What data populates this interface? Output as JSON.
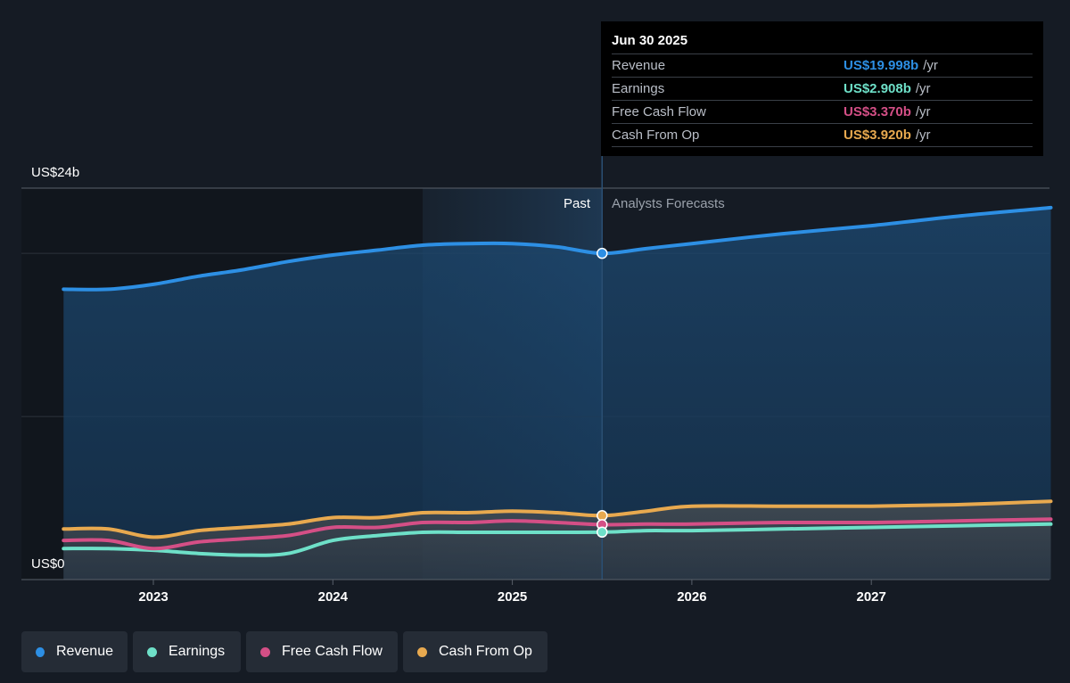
{
  "colors": {
    "revenue": "#2d8fe4",
    "earnings": "#6ee0c8",
    "free_cash_flow": "#d44f86",
    "cash_from_op": "#e8a94f",
    "background": "#151b24"
  },
  "labels": {
    "past": "Past",
    "forecast": "Analysts Forecasts",
    "y_top": "US$24b",
    "y_bottom": "US$0"
  },
  "tooltip": {
    "date": "Jun 30 2025",
    "rows": [
      {
        "name": "Revenue",
        "value": "US$19.998b",
        "unit": "/yr",
        "color": "#2d8fe4"
      },
      {
        "name": "Earnings",
        "value": "US$2.908b",
        "unit": "/yr",
        "color": "#6ee0c8"
      },
      {
        "name": "Free Cash Flow",
        "value": "US$3.370b",
        "unit": "/yr",
        "color": "#d44f86"
      },
      {
        "name": "Cash From Op",
        "value": "US$3.920b",
        "unit": "/yr",
        "color": "#e8a94f"
      }
    ]
  },
  "legend": [
    {
      "label": "Revenue",
      "icon": "circle-icon",
      "color": "#2d8fe4"
    },
    {
      "label": "Earnings",
      "icon": "circle-icon",
      "color": "#6ee0c8"
    },
    {
      "label": "Free Cash Flow",
      "icon": "circle-icon",
      "color": "#d44f86"
    },
    {
      "label": "Cash From Op",
      "icon": "circle-icon",
      "color": "#e8a94f"
    }
  ],
  "chart_data": {
    "type": "area",
    "y_unit": "US$ billions",
    "ylim": [
      0,
      24
    ],
    "xlim": [
      2022.5,
      2028.0
    ],
    "x_ticks": [
      2023,
      2024,
      2025,
      2026,
      2027
    ],
    "x_tick_labels": [
      "2023",
      "2024",
      "2025",
      "2026",
      "2027"
    ],
    "highlight_range": [
      2024.5,
      2025.5
    ],
    "divider_x": 2025.5,
    "grid": true,
    "series": [
      {
        "name": "Revenue",
        "color": "#2d8fe4",
        "filled": true,
        "points": [
          [
            2022.5,
            17.8
          ],
          [
            2022.75,
            17.8
          ],
          [
            2023.0,
            18.1
          ],
          [
            2023.25,
            18.6
          ],
          [
            2023.5,
            19.0
          ],
          [
            2023.75,
            19.5
          ],
          [
            2024.0,
            19.9
          ],
          [
            2024.25,
            20.2
          ],
          [
            2024.5,
            20.5
          ],
          [
            2024.75,
            20.6
          ],
          [
            2025.0,
            20.6
          ],
          [
            2025.25,
            20.4
          ],
          [
            2025.5,
            20.0
          ],
          [
            2025.75,
            20.3
          ],
          [
            2026.0,
            20.6
          ],
          [
            2026.5,
            21.2
          ],
          [
            2027.0,
            21.7
          ],
          [
            2027.5,
            22.3
          ],
          [
            2028.0,
            22.8
          ]
        ]
      },
      {
        "name": "Cash From Op",
        "color": "#e8a94f",
        "filled": true,
        "points": [
          [
            2022.5,
            3.1
          ],
          [
            2022.75,
            3.1
          ],
          [
            2023.0,
            2.6
          ],
          [
            2023.25,
            3.0
          ],
          [
            2023.5,
            3.2
          ],
          [
            2023.75,
            3.4
          ],
          [
            2024.0,
            3.8
          ],
          [
            2024.25,
            3.8
          ],
          [
            2024.5,
            4.1
          ],
          [
            2024.75,
            4.1
          ],
          [
            2025.0,
            4.2
          ],
          [
            2025.25,
            4.1
          ],
          [
            2025.5,
            3.92
          ],
          [
            2025.75,
            4.2
          ],
          [
            2026.0,
            4.5
          ],
          [
            2026.5,
            4.5
          ],
          [
            2027.0,
            4.5
          ],
          [
            2027.5,
            4.6
          ],
          [
            2028.0,
            4.8
          ]
        ]
      },
      {
        "name": "Free Cash Flow",
        "color": "#d44f86",
        "filled": false,
        "points": [
          [
            2022.5,
            2.4
          ],
          [
            2022.75,
            2.4
          ],
          [
            2023.0,
            1.9
          ],
          [
            2023.25,
            2.3
          ],
          [
            2023.5,
            2.5
          ],
          [
            2023.75,
            2.7
          ],
          [
            2024.0,
            3.2
          ],
          [
            2024.25,
            3.2
          ],
          [
            2024.5,
            3.5
          ],
          [
            2024.75,
            3.5
          ],
          [
            2025.0,
            3.6
          ],
          [
            2025.25,
            3.5
          ],
          [
            2025.5,
            3.37
          ],
          [
            2025.75,
            3.4
          ],
          [
            2026.0,
            3.4
          ],
          [
            2026.5,
            3.5
          ],
          [
            2027.0,
            3.5
          ],
          [
            2027.5,
            3.6
          ],
          [
            2028.0,
            3.7
          ]
        ]
      },
      {
        "name": "Earnings",
        "color": "#6ee0c8",
        "filled": false,
        "points": [
          [
            2022.5,
            1.9
          ],
          [
            2022.75,
            1.9
          ],
          [
            2023.0,
            1.8
          ],
          [
            2023.25,
            1.6
          ],
          [
            2023.5,
            1.5
          ],
          [
            2023.75,
            1.6
          ],
          [
            2024.0,
            2.4
          ],
          [
            2024.25,
            2.7
          ],
          [
            2024.5,
            2.9
          ],
          [
            2024.75,
            2.9
          ],
          [
            2025.0,
            2.9
          ],
          [
            2025.25,
            2.9
          ],
          [
            2025.5,
            2.908
          ],
          [
            2025.75,
            3.0
          ],
          [
            2026.0,
            3.0
          ],
          [
            2026.5,
            3.1
          ],
          [
            2027.0,
            3.2
          ],
          [
            2027.5,
            3.3
          ],
          [
            2028.0,
            3.4
          ]
        ]
      }
    ]
  }
}
